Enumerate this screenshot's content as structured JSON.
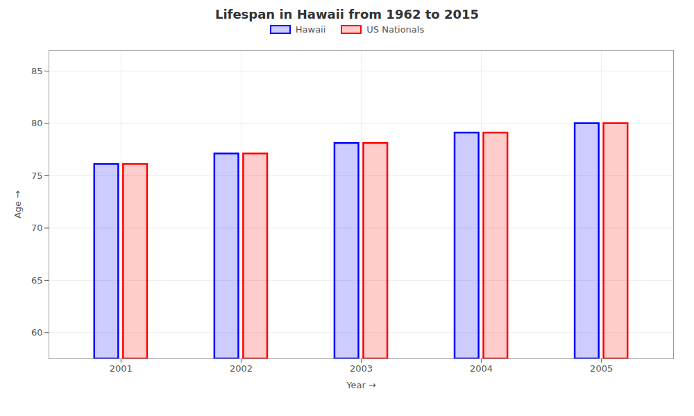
{
  "chart_data": {
    "type": "bar",
    "title": "Lifespan in Hawaii from 1962 to 2015",
    "xlabel": "Year",
    "ylabel": "Age",
    "categories": [
      "2001",
      "2002",
      "2003",
      "2004",
      "2005"
    ],
    "series": [
      {
        "name": "Hawaii",
        "color": "#0000ff",
        "values": [
          76.1,
          77.1,
          78.1,
          79.1,
          80.0
        ]
      },
      {
        "name": "US Nationals",
        "color": "#ff0000",
        "values": [
          76.1,
          77.1,
          78.1,
          79.1,
          80.0
        ]
      }
    ],
    "ylim": [
      57.5,
      87
    ],
    "yticks": [
      60,
      65,
      70,
      75,
      80,
      85
    ],
    "grid": true,
    "legend": "top"
  }
}
